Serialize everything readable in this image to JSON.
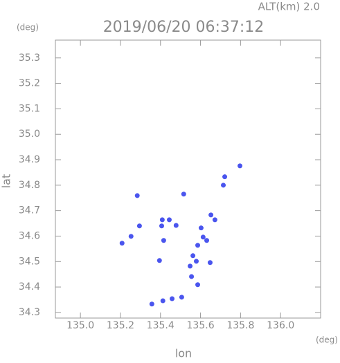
{
  "chart_data": {
    "type": "scatter",
    "title": "2019/06/20 06:37:12",
    "subtitle": "ALT(km) 2.0",
    "x_label": "lon",
    "y_label": "lat",
    "x_unit": "(deg)",
    "y_unit": "(deg)",
    "color": "#4a55ee",
    "x": [
      135.797,
      135.721,
      135.714,
      135.516,
      135.284,
      135.652,
      135.672,
      135.409,
      135.444,
      135.406,
      135.208,
      135.253,
      135.295,
      135.603,
      135.613,
      135.586,
      135.631,
      135.562,
      135.579,
      135.548,
      135.648,
      135.395,
      135.586,
      135.555,
      135.412,
      135.458,
      135.506,
      135.357,
      135.416,
      135.478
    ],
    "values": [
      34.876,
      34.833,
      34.8,
      34.765,
      34.759,
      34.683,
      34.664,
      34.664,
      34.664,
      34.64,
      34.572,
      34.599,
      34.64,
      34.632,
      34.596,
      34.564,
      34.583,
      34.523,
      34.501,
      34.482,
      34.496,
      34.504,
      34.409,
      34.441,
      34.346,
      34.354,
      34.36,
      34.333,
      34.583,
      34.642
    ],
    "xlim": [
      134.875,
      136.2
    ],
    "ylim": [
      34.278,
      35.37
    ],
    "xticks": [
      {
        "value": 135,
        "label": "135.0"
      },
      135.2,
      135.4,
      135.6,
      135.8,
      {
        "value": 136,
        "label": "136.0"
      }
    ],
    "yticks": [
      34.3,
      34.4,
      34.5,
      34.6,
      34.7,
      34.8,
      34.9,
      {
        "value": 35,
        "label": "35.0"
      },
      35.1,
      35.2,
      35.3
    ]
  }
}
